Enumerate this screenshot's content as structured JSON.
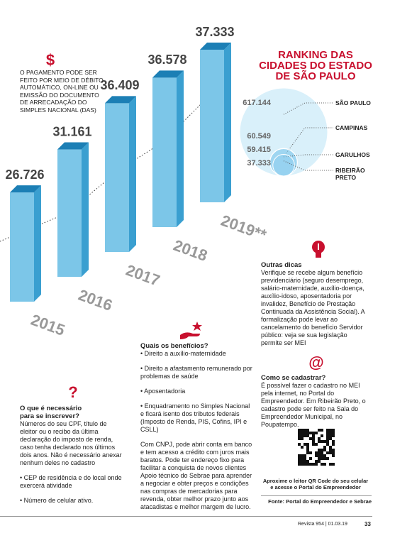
{
  "chart_data": [
    {
      "type": "bar",
      "categories": [
        "2015",
        "2016",
        "2017",
        "2018",
        "2019**"
      ],
      "values": [
        26726,
        31161,
        36409,
        36578,
        37333
      ],
      "value_labels": [
        "26.726",
        "31.161",
        "36.409",
        "36.578",
        "37.333"
      ],
      "color": "#7cc6e8"
    },
    {
      "type": "bubble",
      "title": "RANKING DAS CIDADES DO ESTADO DE SÃO PAULO",
      "categories": [
        "SÃO PAULO",
        "CAMPINAS",
        "GARULHOS",
        "RIBEIRÃO PRETO"
      ],
      "values": [
        617144,
        60549,
        59415,
        37333
      ],
      "value_labels": [
        "617.144",
        "60.549",
        "59.415",
        "37.333"
      ],
      "color": "#bfe6f6"
    }
  ],
  "payment": {
    "icon": "$",
    "text": "O PAGAMENTO PODE SER FEITO POR MEIO DE DÉBITO AUTOMÁTICO, ON-LINE OU EMISSÃO DO DOCUMENTO DE ARRECADAÇÃO DO SIMPLES NACIONAL (DAS)"
  },
  "register": {
    "icon": "?",
    "heading": "O que é necessário para se inscrever?",
    "items": [
      "Números do seu CPF, título de eleitor ou o recibo da última declaração do imposto de renda, caso tenha declarado nos últimos dois anos. Não é necessário anexar nenhum deles no cadastro",
      "• CEP de residência e do local onde exercerá atividade",
      "• Número de celular ativo."
    ]
  },
  "benefits": {
    "heading": "Quais os benefícios?",
    "items": [
      "• Direito a auxílio-maternidade",
      "• Direito a afastamento remunerado por problemas de saúde",
      "• Aposentadoria",
      "• Enquadramento no Simples Nacional e ficará isento dos tributos federais (Imposto de Renda, PIS, Cofins, IPI e CSLL)",
      "Com CNPJ, pode abrir conta em banco e tem acesso a crédito com juros mais baratos. Pode ter endereço fixo para facilitar a conquista de novos clientes Apoio técnico do Sebrae para aprender a negociar e obter preços e condições nas compras de mercadorias para revenda, obter melhor prazo junto aos atacadistas e melhor margem de lucro."
    ]
  },
  "tips": {
    "heading": "Outras dicas",
    "text": "Verifique se recebe algum benefício previdenciário (seguro desemprego, salário-maternidade, auxílio-doença, auxílio-idoso, aposentadoria por invalidez, Benefício de Prestação Continuada da Assistência Social). A formalização pode levar ao cancelamento do benefício Servidor público: veja se sua legislação permite ser MEI"
  },
  "signup": {
    "icon": "@",
    "heading": "Como se cadastrar?",
    "text": "É possível fazer o cadastro no MEI pela internet, no Portal do Empreendedor. Em Ribeirão Preto, o cadastro pode ser feito na Sala do Empreendedor Municipal, no Poupatempo."
  },
  "qr_caption": "Aproxime o leitor QR Code do seu celular e acesse o Portal do Empreendedor",
  "source": "Fonte: Portal do Empreendedor e Sebrae",
  "footer": {
    "issue": "Revista 954 | 01.03.19",
    "page": "33"
  }
}
